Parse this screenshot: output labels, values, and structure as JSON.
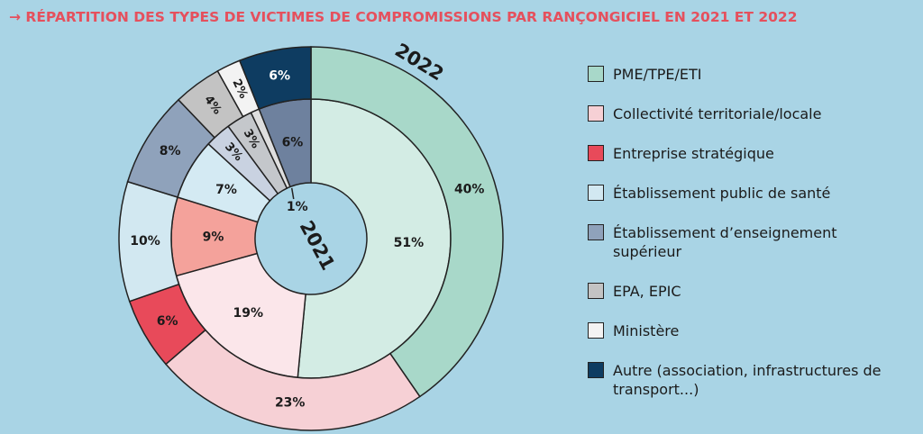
{
  "chart_data": {
    "type": "nested-donut",
    "title": "→ RÉPARTITION DES TYPES DE VICTIMES DE COMPROMISSIONS PAR RANÇONGICIEL EN 2021 ET 2022",
    "categories": [
      "PME/TPE/ETI",
      "Collectivité territoriale/locale",
      "Entreprise stratégique",
      "Établissement public de santé",
      "Établissement d’enseignement supérieur",
      "EPA, EPIC",
      "Ministère",
      "Autre (association, infrastructures de transport...)"
    ],
    "series": [
      {
        "name": "2021",
        "ring": "inner",
        "colors": [
          "#d3ece4",
          "#fbe6ea",
          "#f4a29b",
          "#d4eaf3",
          "#c9d2e1",
          "#c4c7cb",
          "#dedede",
          "#6e819e"
        ],
        "values": [
          51,
          19,
          9,
          7,
          3,
          3,
          1,
          6
        ],
        "value_labels": [
          "51%",
          "19%",
          "9%",
          "7%",
          "3%",
          "3%",
          "1%",
          "6%"
        ]
      },
      {
        "name": "2022",
        "ring": "outer",
        "colors": [
          "#a8d8c9",
          "#f6d0d5",
          "#e84a5a",
          "#d2e8f1",
          "#8fa2bb",
          "#c3c3c3",
          "#f3f3f3",
          "#0e3c61"
        ],
        "values": [
          40,
          23,
          6,
          10,
          8,
          4,
          2,
          6
        ],
        "value_labels": [
          "40%",
          "23%",
          "6%",
          "10%",
          "8%",
          "4%",
          "2%",
          "6%"
        ]
      }
    ],
    "legend": "right"
  }
}
